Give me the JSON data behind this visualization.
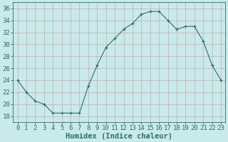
{
  "x": [
    0,
    1,
    2,
    3,
    4,
    5,
    6,
    7,
    8,
    9,
    10,
    11,
    12,
    13,
    14,
    15,
    16,
    17,
    18,
    19,
    20,
    21,
    22,
    23
  ],
  "y": [
    24,
    22,
    20.5,
    20,
    18.5,
    18.5,
    18.5,
    18.5,
    23,
    26.5,
    29.5,
    31,
    32.5,
    33.5,
    35,
    35.5,
    35.5,
    34,
    32.5,
    33,
    33,
    30.5,
    26.5,
    24
  ],
  "line_color": "#2d6e63",
  "marker": "+",
  "bg_color": "#c8eaea",
  "grid_color": "#c8b4b4",
  "xlabel": "Humidex (Indice chaleur)",
  "xlim": [
    -0.5,
    23.5
  ],
  "ylim": [
    17,
    37
  ],
  "yticks": [
    18,
    20,
    22,
    24,
    26,
    28,
    30,
    32,
    34,
    36
  ],
  "xticks": [
    0,
    1,
    2,
    3,
    4,
    5,
    6,
    7,
    8,
    9,
    10,
    11,
    12,
    13,
    14,
    15,
    16,
    17,
    18,
    19,
    20,
    21,
    22,
    23
  ],
  "tick_color": "#2d6e63",
  "font_size_axis": 6.5,
  "font_size_label": 7.5,
  "lw": 0.8,
  "marker_size": 3.5,
  "marker_lw": 0.9
}
